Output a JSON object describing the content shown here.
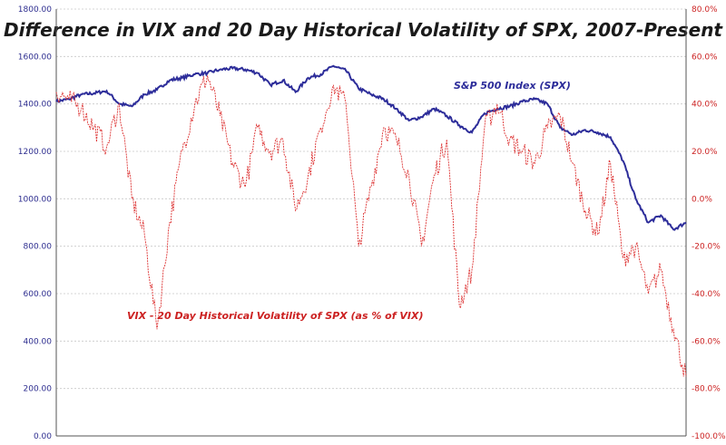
{
  "chart_data": {
    "type": "line",
    "title": "Difference in VIX and 20 Day Historical Volatility of SPX, 2007-Present",
    "xlabel": "",
    "ylabel": "",
    "ylim_left": [
      0,
      1800
    ],
    "ylim_right": [
      -100,
      80
    ],
    "y_ticks_left": [
      "0.00",
      "200.00",
      "400.00",
      "600.00",
      "800.00",
      "1000.00",
      "1200.00",
      "1400.00",
      "1600.00",
      "1800.00"
    ],
    "y_ticks_right": [
      "-100.0%",
      "-80.0%",
      "-60.0%",
      "-40.0%",
      "-20.0%",
      "0.0%",
      "20.0%",
      "40.0%",
      "60.0%",
      "80.0%"
    ],
    "grid": true,
    "colors": {
      "spx": "#2d2d9a",
      "vix": "#dd3333"
    },
    "series": [
      {
        "name": "S&P 500 Index (SPX)",
        "axis": "left",
        "x": [
          0,
          0.02,
          0.04,
          0.06,
          0.08,
          0.1,
          0.12,
          0.14,
          0.16,
          0.18,
          0.2,
          0.22,
          0.24,
          0.26,
          0.28,
          0.3,
          0.32,
          0.34,
          0.36,
          0.38,
          0.4,
          0.42,
          0.44,
          0.46,
          0.48,
          0.5,
          0.52,
          0.54,
          0.56,
          0.58,
          0.6,
          0.62,
          0.64,
          0.66,
          0.68,
          0.7,
          0.72,
          0.74,
          0.76,
          0.78,
          0.8,
          0.82,
          0.84,
          0.86,
          0.88,
          0.9,
          0.92,
          0.94,
          0.96,
          0.98,
          1.0
        ],
        "values": [
          1410,
          1420,
          1440,
          1445,
          1455,
          1400,
          1390,
          1440,
          1460,
          1500,
          1510,
          1525,
          1530,
          1545,
          1550,
          1545,
          1530,
          1480,
          1500,
          1450,
          1510,
          1525,
          1560,
          1540,
          1465,
          1440,
          1420,
          1380,
          1330,
          1345,
          1380,
          1350,
          1310,
          1280,
          1360,
          1380,
          1390,
          1410,
          1420,
          1400,
          1300,
          1270,
          1290,
          1280,
          1260,
          1160,
          1000,
          900,
          930,
          870,
          900
        ]
      },
      {
        "name": "VIX - 20 Day Historical Volatility of SPX (as % of VIX)",
        "axis": "right",
        "x": [
          0,
          0.02,
          0.04,
          0.06,
          0.08,
          0.1,
          0.12,
          0.14,
          0.16,
          0.18,
          0.2,
          0.22,
          0.24,
          0.26,
          0.28,
          0.3,
          0.32,
          0.34,
          0.36,
          0.38,
          0.4,
          0.42,
          0.44,
          0.46,
          0.48,
          0.5,
          0.52,
          0.54,
          0.56,
          0.58,
          0.6,
          0.62,
          0.64,
          0.66,
          0.68,
          0.7,
          0.72,
          0.74,
          0.76,
          0.78,
          0.8,
          0.82,
          0.84,
          0.86,
          0.88,
          0.9,
          0.92,
          0.94,
          0.96,
          0.98,
          1.0
        ],
        "values": [
          45,
          42,
          38,
          30,
          22,
          40,
          0,
          -15,
          -55,
          -10,
          20,
          40,
          52,
          35,
          15,
          5,
          30,
          20,
          25,
          -5,
          10,
          30,
          48,
          40,
          -20,
          5,
          30,
          25,
          10,
          -20,
          10,
          25,
          -45,
          -30,
          30,
          40,
          25,
          20,
          15,
          30,
          35,
          15,
          -5,
          -15,
          15,
          -25,
          -20,
          -40,
          -30,
          -55,
          -75
        ]
      }
    ]
  },
  "annotations": {
    "spx_label": "S&P 500 Index (SPX)",
    "vix_label": "VIX - 20 Day Historical Volatility of SPX (as % of VIX)"
  }
}
